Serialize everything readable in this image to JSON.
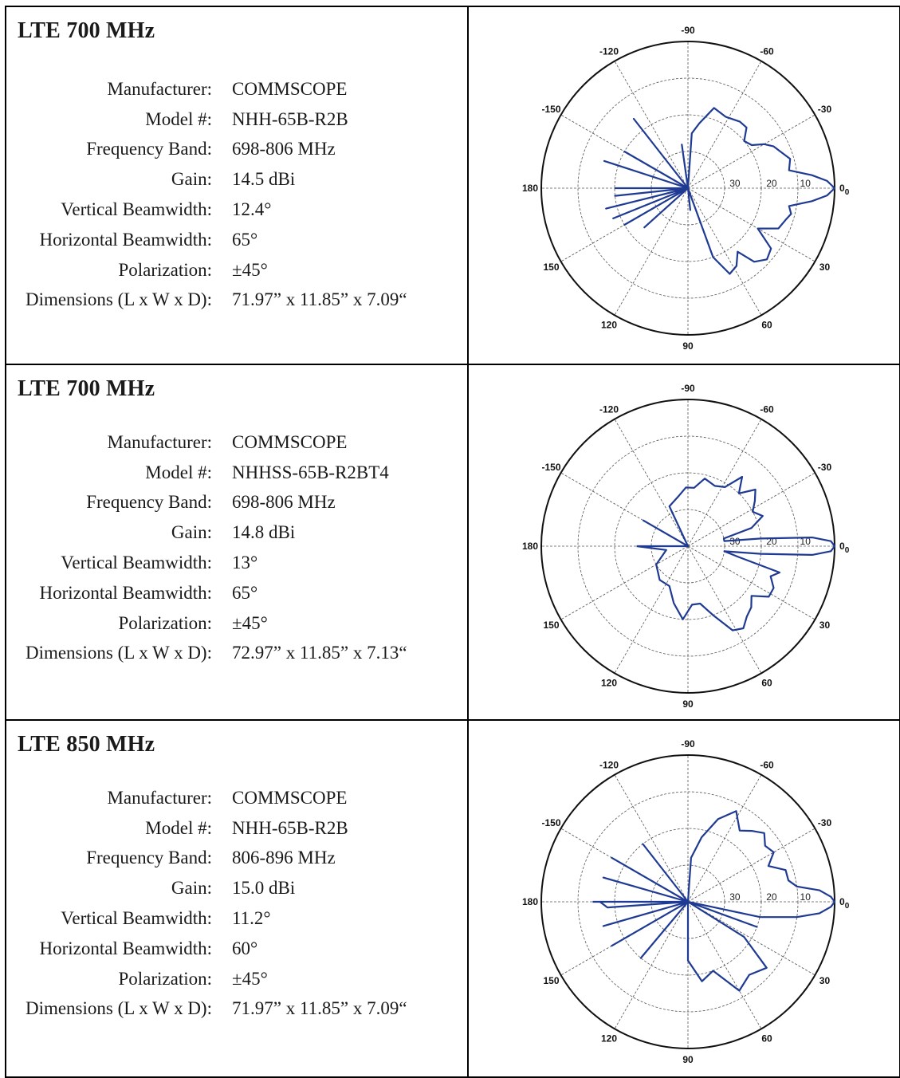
{
  "antennas": [
    {
      "title": "LTE 700 MHz",
      "specs": [
        {
          "label": "Manufacturer:",
          "value": "COMMSCOPE"
        },
        {
          "label": "Model #:",
          "value": "NHH-65B-R2B"
        },
        {
          "label": "Frequency Band:",
          "value": "698-806 MHz"
        },
        {
          "label": "Gain:",
          "value": "14.5 dBi"
        },
        {
          "label": "Vertical Beamwidth:",
          "value": "12.4°"
        },
        {
          "label": "Horizontal Beamwidth:",
          "value": "65°"
        },
        {
          "label": "Polarization:",
          "value": "±45°"
        },
        {
          "label": "Dimensions (L x W x D):",
          "value": "71.97” x 11.85” x 7.09“"
        }
      ]
    },
    {
      "title": "LTE 700 MHz",
      "specs": [
        {
          "label": "Manufacturer:",
          "value": "COMMSCOPE"
        },
        {
          "label": "Model #:",
          "value": "NHHSS-65B-R2BT4"
        },
        {
          "label": "Frequency Band:",
          "value": "698-806 MHz"
        },
        {
          "label": "Gain:",
          "value": "14.8 dBi"
        },
        {
          "label": "Vertical Beamwidth:",
          "value": "13°"
        },
        {
          "label": "Horizontal Beamwidth:",
          "value": "65°"
        },
        {
          "label": "Polarization:",
          "value": "±45°"
        },
        {
          "label": "Dimensions (L x W x D):",
          "value": "72.97” x 11.85” x 7.13“"
        }
      ]
    },
    {
      "title": "LTE 850 MHz",
      "specs": [
        {
          "label": "Manufacturer:",
          "value": "COMMSCOPE"
        },
        {
          "label": "Model #:",
          "value": "NHH-65B-R2B"
        },
        {
          "label": "Frequency Band:",
          "value": "806-896 MHz"
        },
        {
          "label": "Gain:",
          "value": "15.0 dBi"
        },
        {
          "label": "Vertical Beamwidth:",
          "value": "11.2°"
        },
        {
          "label": "Horizontal Beamwidth:",
          "value": "60°"
        },
        {
          "label": "Polarization:",
          "value": "±45°"
        },
        {
          "label": "Dimensions (L x W x D):",
          "value": "71.97” x 11.85” x 7.09“"
        }
      ]
    }
  ],
  "chart_data": [
    {
      "type": "line",
      "chart_kind": "polar",
      "angle_labels": [
        "-90",
        "-60",
        "-30",
        "0",
        "30",
        "60",
        "90",
        "120",
        "150",
        "180",
        "-150",
        "-120"
      ],
      "zero_label": "0",
      "zero_subscript": "0",
      "ring_labels": [
        "30",
        "20",
        "10"
      ],
      "line_color": "#1f3a93",
      "series": [
        {
          "r_units": "dB relative to peak (0 at outer ring, -40 at center)",
          "theta": [
            -180,
            -170,
            -162,
            -158,
            -150,
            -140,
            -128,
            -118,
            -110,
            -105,
            -98,
            -92,
            -86,
            -80,
            -72,
            -62,
            -52,
            -46,
            -40,
            -34,
            -30,
            -26,
            -22,
            -16,
            -10,
            -6,
            -3,
            0,
            3,
            6,
            10,
            14,
            18,
            24,
            30,
            36,
            42,
            48,
            52,
            58,
            64,
            70,
            76,
            84,
            92,
            100,
            110,
            120,
            130,
            138,
            146,
            150,
            154,
            158,
            162,
            166,
            170,
            174,
            178,
            180
          ],
          "r": [
            -20,
            -40,
            -16,
            -40,
            -20,
            -40,
            -16,
            -40,
            -40,
            -40,
            -28,
            -40,
            -25,
            -22,
            -17,
            -18,
            -17,
            -17,
            -20,
            -19,
            -16,
            -14,
            -13,
            -11,
            -12,
            -6,
            -2,
            0,
            -2,
            -6,
            -12,
            -11,
            -12,
            -13,
            -18,
            -12,
            -11,
            -13,
            -18,
            -15,
            -14,
            -20,
            -40,
            -34,
            -40,
            -40,
            -40,
            -40,
            -40,
            -24,
            -40,
            -20,
            -40,
            -18,
            -40,
            -17,
            -40,
            -20,
            -40,
            -22
          ]
        }
      ]
    },
    {
      "type": "line",
      "chart_kind": "polar",
      "angle_labels": [
        "-90",
        "-60",
        "-30",
        "0",
        "30",
        "60",
        "90",
        "120",
        "150",
        "180",
        "-150",
        "-120"
      ],
      "zero_label": "0",
      "zero_subscript": "0",
      "ring_labels": [
        "30",
        "20",
        "10"
      ],
      "line_color": "#1f3a93",
      "series": [
        {
          "r_units": "dB relative to peak (0 at outer ring, -40 at center)",
          "theta": [
            -180,
            -170,
            -150,
            -130,
            -115,
            -100,
            -92,
            -84,
            -76,
            -66,
            -58,
            -52,
            -46,
            -40,
            -34,
            -28,
            -22,
            -16,
            -12,
            -8,
            -6,
            -4,
            -2,
            0,
            2,
            4,
            6,
            8,
            12,
            16,
            20,
            26,
            32,
            38,
            44,
            50,
            56,
            62,
            70,
            78,
            86,
            94,
            104,
            115,
            130,
            150,
            170,
            180
          ],
          "r": [
            -26,
            -40,
            -26,
            -40,
            -28,
            -26,
            -24,
            -24,
            -21,
            -22,
            -21,
            -16,
            -20,
            -16,
            -18,
            -20,
            -18,
            -22,
            -30,
            -30,
            -20,
            -6,
            -1,
            0,
            -1,
            -6,
            -20,
            -30,
            -26,
            -14,
            -16,
            -14,
            -14,
            -18,
            -16,
            -15,
            -13,
            -14,
            -20,
            -24,
            -24,
            -20,
            -24,
            -28,
            -28,
            -30,
            -34,
            -26
          ]
        }
      ]
    },
    {
      "type": "line",
      "chart_kind": "polar",
      "angle_labels": [
        "-90",
        "-60",
        "-30",
        "0",
        "30",
        "60",
        "90",
        "120",
        "150",
        "180",
        "-150",
        "-120"
      ],
      "zero_label": "0",
      "zero_subscript": "0",
      "ring_labels": [
        "30",
        "20",
        "10"
      ],
      "line_color": "#1f3a93",
      "series": [
        {
          "r_units": "dB relative to peak (0 at outer ring, -40 at center)",
          "theta": [
            -180,
            -172,
            -164,
            -158,
            -150,
            -140,
            -128,
            -116,
            -104,
            -94,
            -86,
            -78,
            -70,
            -62,
            -54,
            -48,
            -42,
            -36,
            -30,
            -24,
            -18,
            -12,
            -8,
            -5,
            -2,
            0,
            2,
            5,
            8,
            12,
            16,
            20,
            26,
            32,
            40,
            50,
            60,
            70,
            80,
            90,
            100,
            110,
            120,
            130,
            140,
            150,
            158,
            164,
            170,
            176,
            180
          ],
          "r": [
            -14,
            -40,
            -16,
            -40,
            -16,
            -40,
            -20,
            -40,
            -40,
            -40,
            -28,
            -22,
            -16,
            -12,
            -16,
            -14,
            -12,
            -14,
            -13,
            -16,
            -12,
            -12,
            -10,
            -4,
            -1,
            0,
            -1,
            -4,
            -10,
            -20,
            -40,
            -20,
            -40,
            -22,
            -12,
            -14,
            -12,
            -20,
            -18,
            -24,
            -40,
            -40,
            -40,
            -20,
            -40,
            -16,
            -40,
            -16,
            -40,
            -18,
            -16
          ]
        }
      ]
    }
  ]
}
